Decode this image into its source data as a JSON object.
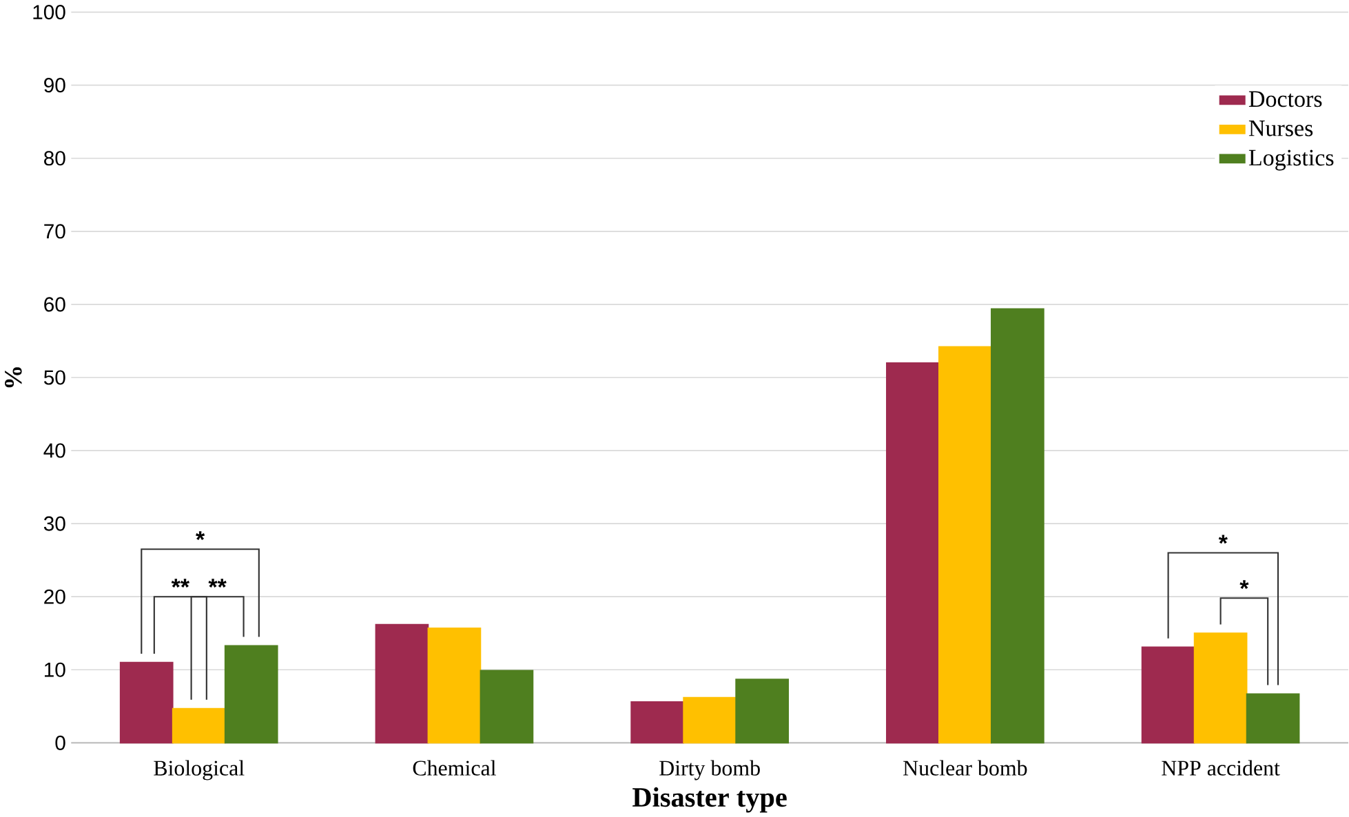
{
  "chart_data": {
    "type": "bar",
    "xlabel": "**Disaster type**",
    "ylabel": "%",
    "categories": [
      "Biological",
      "Chemical",
      "Dirty bomb",
      "Nuclear bomb",
      "NPP accident"
    ],
    "series": [
      {
        "name": "Doctors",
        "color": "#9e2a4f",
        "values": [
          11.0,
          16.2,
          5.6,
          52.0,
          13.1
        ]
      },
      {
        "name": "Nurses",
        "color": "#ffc000",
        "values": [
          4.7,
          15.7,
          6.2,
          54.2,
          15.0
        ]
      },
      {
        "name": "Logistics",
        "color": "#4f7f1f",
        "values": [
          13.3,
          9.9,
          8.7,
          59.4,
          6.7
        ]
      }
    ],
    "ylim": [
      0,
      100
    ],
    "yticks": [
      0,
      10,
      20,
      30,
      40,
      50,
      60,
      70,
      80,
      90,
      100
    ],
    "grid": "y",
    "legend": "top right",
    "annotations": [
      "*",
      "**",
      "**",
      "*",
      "*"
    ]
  }
}
